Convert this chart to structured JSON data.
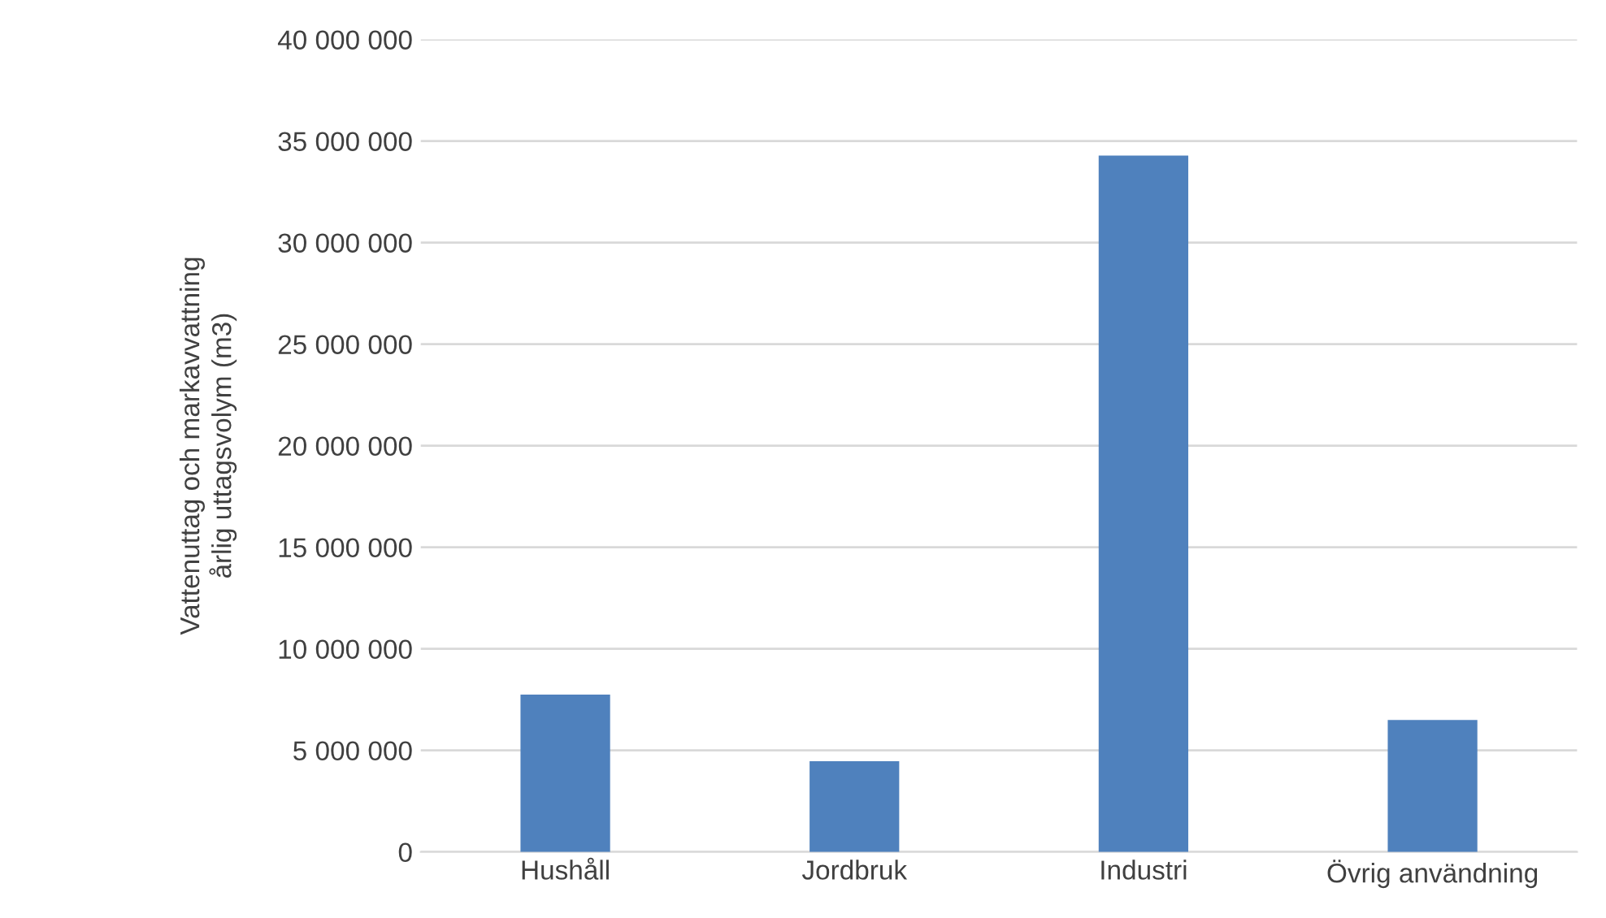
{
  "chart_data": {
    "type": "bar",
    "ylabel": "Vattenuttag och markavvattning\nårlig uttagsvolym (m3)",
    "categories": [
      "Hushåll",
      "Jordbruk",
      "Industri",
      "Övrig användning"
    ],
    "values": [
      7750000,
      4470000,
      34280000,
      6500000
    ],
    "color": "#4f81bd",
    "ylim": [
      0,
      40000000
    ],
    "yticks": [
      {
        "value": 0,
        "label": "0"
      },
      {
        "value": 5000000,
        "label": "5 000 000"
      },
      {
        "value": 10000000,
        "label": "10 000 000"
      },
      {
        "value": 15000000,
        "label": "15 000 000"
      },
      {
        "value": 20000000,
        "label": "20 000 000"
      },
      {
        "value": 25000000,
        "label": "25 000 000"
      },
      {
        "value": 30000000,
        "label": "30 000 000"
      },
      {
        "value": 35000000,
        "label": "35 000 000"
      },
      {
        "value": 40000000,
        "label": "40 000 000"
      }
    ],
    "grid": "y"
  }
}
